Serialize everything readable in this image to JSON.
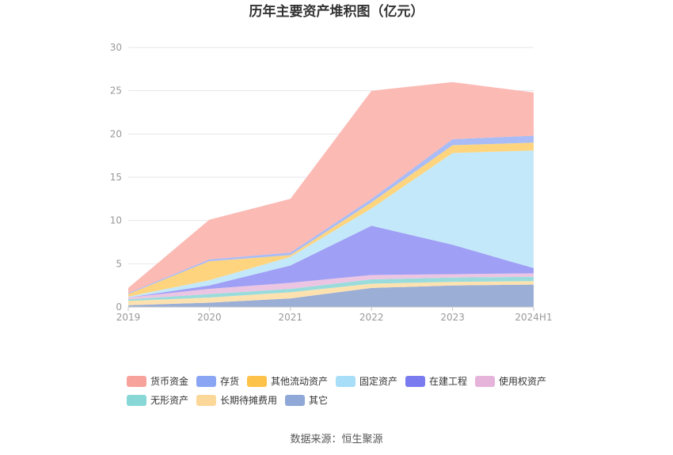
{
  "chart_data": {
    "type": "area",
    "stacked": true,
    "title": "历年主要资产堆积图（亿元）",
    "categories": [
      "2019",
      "2020",
      "2021",
      "2022",
      "2023",
      "2024H1"
    ],
    "ylim": [
      0,
      30
    ],
    "yticks": [
      "0",
      "5",
      "10",
      "15",
      "20",
      "25",
      "30"
    ],
    "grid": true,
    "legend_position": "bottom",
    "series": [
      {
        "name": "其它",
        "color": "#9aaed6",
        "values": [
          0.2,
          0.5,
          1.0,
          2.2,
          2.5,
          2.6
        ]
      },
      {
        "name": "长期待摊费用",
        "color": "#fde2b0",
        "values": [
          0.5,
          0.6,
          0.7,
          0.5,
          0.4,
          0.4
        ]
      },
      {
        "name": "无形资产",
        "color": "#9adcdc",
        "values": [
          0.2,
          0.4,
          0.4,
          0.5,
          0.5,
          0.5
        ]
      },
      {
        "name": "使用权资产",
        "color": "#ecc5e3",
        "values": [
          0.2,
          0.6,
          0.7,
          0.5,
          0.4,
          0.4
        ]
      },
      {
        "name": "在建工程",
        "color": "#9f9ff5",
        "values": [
          0.0,
          0.4,
          2.0,
          5.7,
          3.4,
          0.6
        ]
      },
      {
        "name": "固定资产",
        "color": "#c3e8f9",
        "values": [
          0.1,
          0.6,
          1.0,
          2.0,
          10.6,
          13.6
        ]
      },
      {
        "name": "其他流动资产",
        "color": "#fed57e",
        "values": [
          0.3,
          2.2,
          0.2,
          0.7,
          0.9,
          0.9
        ]
      },
      {
        "name": "存货",
        "color": "#a9bcf6",
        "values": [
          0.1,
          0.2,
          0.3,
          0.4,
          0.7,
          0.8
        ]
      },
      {
        "name": "货币资金",
        "color": "#fbbab4",
        "values": [
          0.6,
          4.6,
          6.2,
          12.5,
          6.6,
          5.0
        ]
      }
    ],
    "legend_order": [
      "货币资金",
      "存货",
      "其他流动资产",
      "固定资产",
      "在建工程",
      "使用权资产",
      "无形资产",
      "长期待摊费用",
      "其它"
    ],
    "legend_swatch_colors": {
      "货币资金": "#f7a39b",
      "存货": "#8aa5f4",
      "其他流动资产": "#fcc24a",
      "固定资产": "#a8def8",
      "在建工程": "#7b7bf0",
      "使用权资产": "#e6b3db",
      "无形资产": "#86d7d6",
      "长期待摊费用": "#fcd79a",
      "其它": "#8fa8d8"
    }
  },
  "source": "数据来源：恒生聚源"
}
